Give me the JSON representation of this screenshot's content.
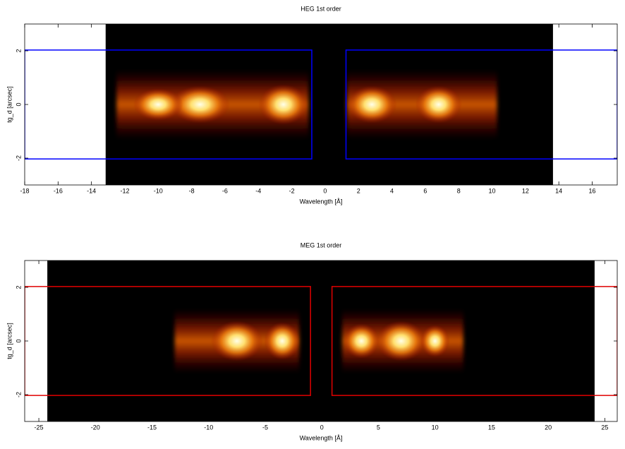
{
  "chart_data": [
    {
      "type": "heatmap",
      "title": "HEG 1st order",
      "xlabel": "Wavelength [Å]",
      "ylabel": "tg_d [arcsec]",
      "xlim": [
        -18,
        17.5
      ],
      "ylim": [
        -3,
        3
      ],
      "xticks": [
        -18,
        -16,
        -14,
        -12,
        -10,
        -8,
        -6,
        -4,
        -2,
        0,
        2,
        4,
        6,
        8,
        10,
        12,
        14,
        16
      ],
      "yticks": [
        -2,
        0,
        2
      ],
      "extent": [
        -13.15,
        13.65
      ],
      "region_color": "#0000ff",
      "regions": [
        {
          "x": [
            -18,
            -0.8
          ],
          "y": [
            -2.03,
            2.03
          ]
        },
        {
          "x": [
            1.25,
            17.5
          ],
          "y": [
            -2.03,
            2.03
          ]
        }
      ],
      "bands": [
        {
          "x": [
            -12.5,
            -1
          ],
          "h": 1.3
        },
        {
          "x": [
            1.3,
            10.3
          ],
          "h": 1.3
        }
      ],
      "blobs": [
        {
          "x": -2.5,
          "wx": 1.5,
          "wy": 0.75
        },
        {
          "x": -7.5,
          "wx": 1.8,
          "wy": 0.7
        },
        {
          "x": -10,
          "wx": 1.5,
          "wy": 0.6
        },
        {
          "x": 2.8,
          "wx": 1.5,
          "wy": 0.7
        },
        {
          "x": 6.8,
          "wx": 1.4,
          "wy": 0.7
        }
      ]
    },
    {
      "type": "heatmap",
      "title": "MEG 1st order",
      "xlabel": "Wavelength [Å]",
      "ylabel": "tg_d [arcsec]",
      "xlim": [
        -26.25,
        26.1
      ],
      "ylim": [
        -3,
        3
      ],
      "xticks": [
        -25,
        -20,
        -15,
        -10,
        -5,
        0,
        5,
        10,
        15,
        20,
        25
      ],
      "yticks": [
        -2,
        0,
        2
      ],
      "extent": [
        -24.25,
        24.1
      ],
      "region_color": "#e00000",
      "regions": [
        {
          "x": [
            -26.25,
            -1
          ],
          "y": [
            -2.03,
            2.03
          ]
        },
        {
          "x": [
            0.9,
            26.1
          ],
          "y": [
            -2.03,
            2.03
          ]
        }
      ],
      "bands": [
        {
          "x": [
            -13,
            -2
          ],
          "h": 1.2
        },
        {
          "x": [
            1.8,
            12.5
          ],
          "h": 1.2
        }
      ],
      "blobs": [
        {
          "x": -7.5,
          "wx": 2.3,
          "wy": 0.75
        },
        {
          "x": -3.5,
          "wx": 1.6,
          "wy": 0.7
        },
        {
          "x": 3.5,
          "wx": 1.6,
          "wy": 0.65
        },
        {
          "x": 7,
          "wx": 2.2,
          "wy": 0.75
        },
        {
          "x": 10,
          "wx": 1.3,
          "wy": 0.6
        }
      ]
    }
  ]
}
